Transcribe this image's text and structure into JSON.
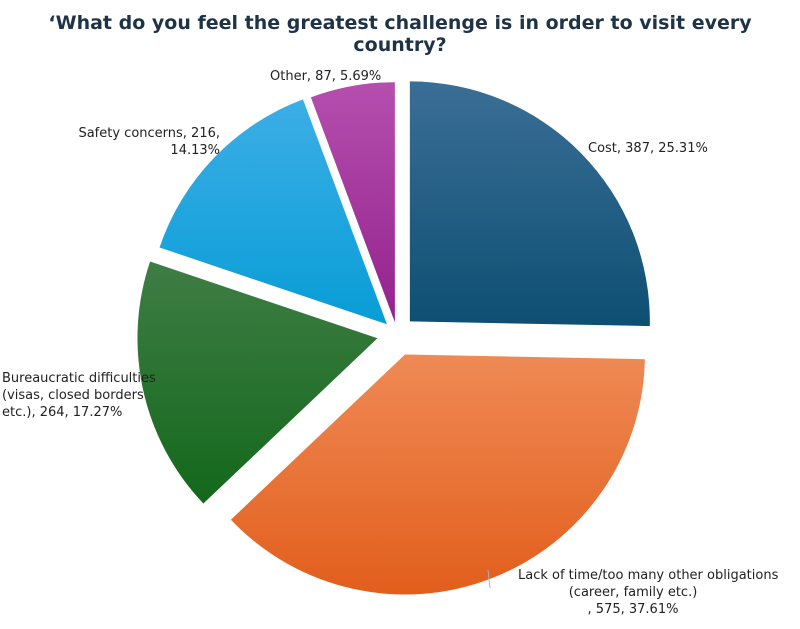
{
  "chart_data": {
    "type": "pie",
    "title": "‘What do you feel the greatest challenge is in order to visit every country?",
    "slices": [
      {
        "key": "cost",
        "label_lines": [
          "Cost, 387, 25.31%"
        ],
        "value": 387,
        "percent": 25.31,
        "color_top": "#3b6e96",
        "color_bottom": "#0d4f72"
      },
      {
        "key": "lack-of-time",
        "label_lines": [
          "Lack of time/too many other obligations",
          "(career, family etc.)",
          ", 575, 37.61%"
        ],
        "value": 575,
        "percent": 37.61,
        "color_top": "#ef8a55",
        "color_bottom": "#e25e1c"
      },
      {
        "key": "bureaucratic",
        "label_lines": [
          "Bureaucratic difficulties",
          "(visas, closed borders",
          "etc.), 264, 17.27%"
        ],
        "value": 264,
        "percent": 17.27,
        "color_top": "#3f7d45",
        "color_bottom": "#13681b"
      },
      {
        "key": "safety",
        "label_lines": [
          "Safety concerns, 216,",
          "14.13%"
        ],
        "value": 216,
        "percent": 14.13,
        "color_top": "#3caee6",
        "color_bottom": "#089dd6"
      },
      {
        "key": "other",
        "label_lines": [
          "Other, 87, 5.69%"
        ],
        "value": 87,
        "percent": 5.69,
        "color_top": "#b54fae",
        "color_bottom": "#93228d"
      }
    ],
    "legend": "none",
    "labels": "outside, category name with value and percent"
  }
}
